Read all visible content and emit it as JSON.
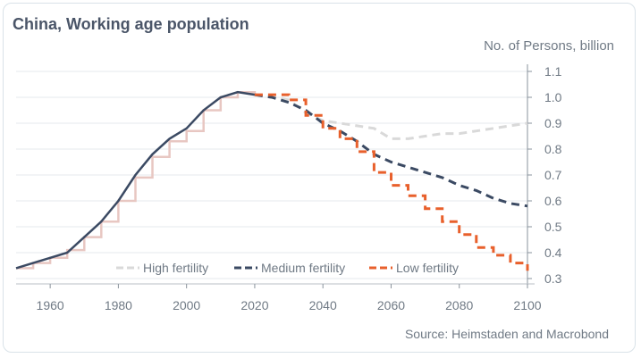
{
  "chart_data": {
    "type": "line",
    "title": "China, Working age population",
    "ylabel": "No. of Persons, billion",
    "source": "Source: Heimstaden and Macrobond",
    "xlim": [
      1950,
      2100
    ],
    "ylim": [
      0.3,
      1.1
    ],
    "x_ticks": [
      1960,
      1980,
      2000,
      2020,
      2040,
      2060,
      2080,
      2100
    ],
    "y_ticks": [
      0.3,
      0.4,
      0.5,
      0.6,
      0.7,
      0.8,
      0.9,
      1.0,
      1.1
    ],
    "y_tick_labels": [
      "0.3",
      "0.4",
      "0.5",
      "0.6",
      "0.7",
      "0.8",
      "0.9",
      "1.0",
      "1.1"
    ],
    "grid": true,
    "legend_position": "bottom-center",
    "series": [
      {
        "name": "High fertility",
        "color": "#d9d9d9",
        "style": "dashed",
        "x": [
          2020,
          2025,
          2030,
          2035,
          2040,
          2045,
          2050,
          2055,
          2060,
          2065,
          2070,
          2075,
          2080,
          2085,
          2090,
          2095,
          2100
        ],
        "y": [
          1.01,
          1.0,
          0.99,
          0.94,
          0.91,
          0.9,
          0.89,
          0.88,
          0.84,
          0.84,
          0.85,
          0.86,
          0.86,
          0.87,
          0.88,
          0.89,
          0.9
        ]
      },
      {
        "name": "Medium fertility",
        "color": "#3b4a63",
        "style": "dashed",
        "x": [
          1950,
          1955,
          1960,
          1965,
          1970,
          1975,
          1980,
          1985,
          1990,
          1995,
          2000,
          2005,
          2010,
          2015,
          2020,
          2025,
          2030,
          2035,
          2040,
          2045,
          2050,
          2055,
          2060,
          2065,
          2070,
          2075,
          2080,
          2085,
          2090,
          2095,
          2100
        ],
        "y": [
          0.34,
          0.36,
          0.38,
          0.4,
          0.46,
          0.52,
          0.6,
          0.7,
          0.78,
          0.84,
          0.88,
          0.95,
          1.0,
          1.02,
          1.01,
          1.0,
          0.98,
          0.95,
          0.9,
          0.87,
          0.83,
          0.78,
          0.75,
          0.73,
          0.71,
          0.69,
          0.66,
          0.64,
          0.61,
          0.59,
          0.58
        ]
      },
      {
        "name": "Low fertility",
        "color": "#e8602c",
        "style": "dashed",
        "x": [
          2020,
          2025,
          2030,
          2035,
          2040,
          2045,
          2050,
          2055,
          2060,
          2065,
          2070,
          2075,
          2080,
          2085,
          2090,
          2095,
          2100
        ],
        "y": [
          1.01,
          1.01,
          0.99,
          0.93,
          0.88,
          0.84,
          0.79,
          0.71,
          0.66,
          0.62,
          0.57,
          0.52,
          0.47,
          0.42,
          0.39,
          0.36,
          0.33
        ]
      }
    ],
    "historical_step_line": {
      "color": "#e8c7c2",
      "x": [
        1950,
        1955,
        1960,
        1965,
        1970,
        1975,
        1980,
        1985,
        1990,
        1995,
        2000,
        2005,
        2010,
        2015,
        2020
      ],
      "y": [
        0.34,
        0.36,
        0.38,
        0.41,
        0.46,
        0.52,
        0.6,
        0.69,
        0.77,
        0.83,
        0.87,
        0.95,
        1.0,
        1.02,
        1.01
      ]
    }
  }
}
